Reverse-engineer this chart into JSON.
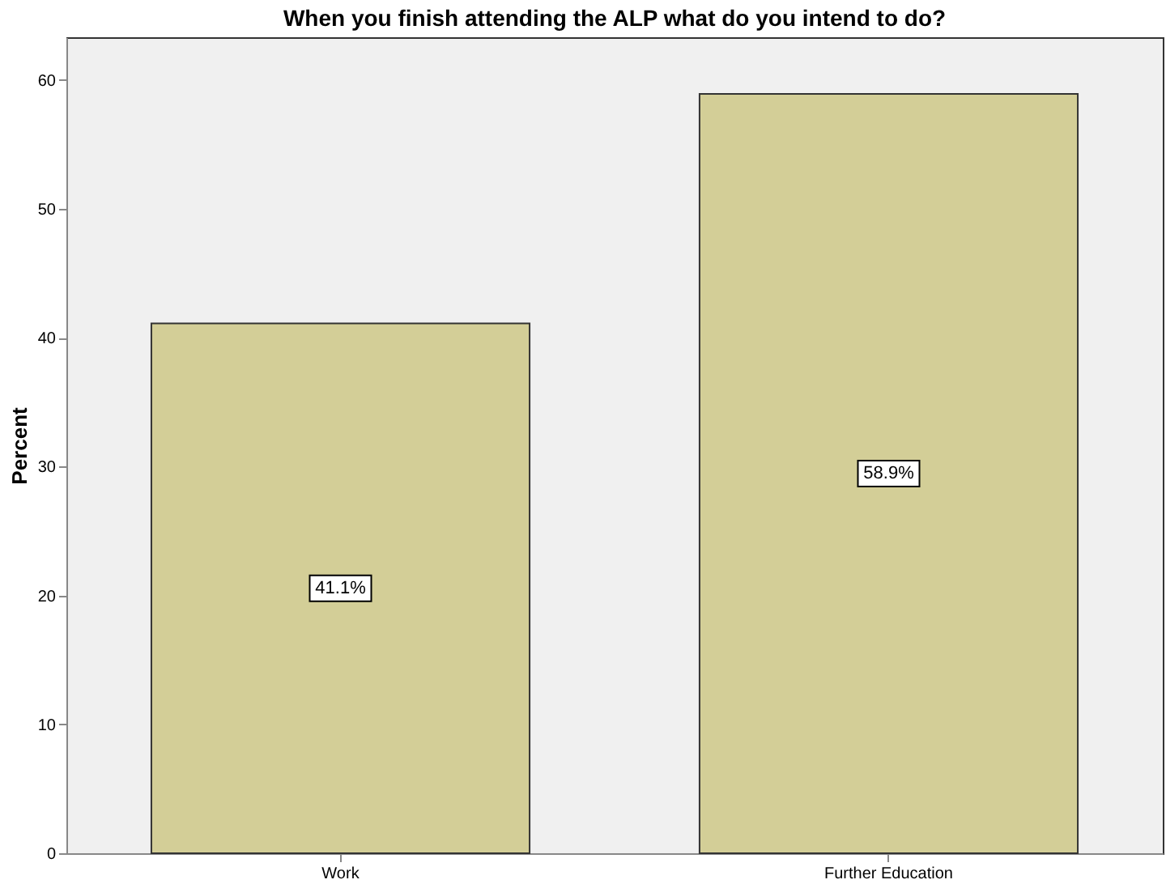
{
  "chart_data": {
    "type": "bar",
    "title": "When you finish attending the ALP what do you intend to do?",
    "ylabel": "Percent",
    "categories": [
      "Work",
      "Further Education"
    ],
    "series": [
      {
        "color": "#d3ce97",
        "values": [
          41.1,
          58.9
        ]
      }
    ],
    "value_labels": [
      "41.1%",
      "58.9%"
    ],
    "ylim": [
      0,
      63.3
    ],
    "yticks": [
      0,
      10,
      20,
      30,
      40,
      50,
      60
    ],
    "grid": false
  }
}
